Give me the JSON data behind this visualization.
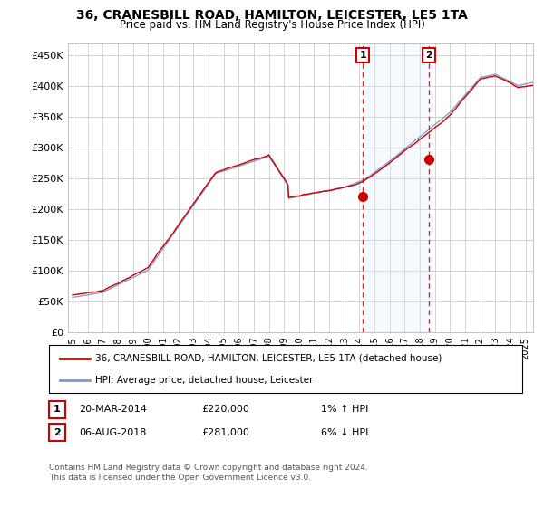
{
  "title": "36, CRANESBILL ROAD, HAMILTON, LEICESTER, LE5 1TA",
  "subtitle": "Price paid vs. HM Land Registry's House Price Index (HPI)",
  "ylabel_ticks": [
    "£0",
    "£50K",
    "£100K",
    "£150K",
    "£200K",
    "£250K",
    "£300K",
    "£350K",
    "£400K",
    "£450K"
  ],
  "ytick_vals": [
    0,
    50000,
    100000,
    150000,
    200000,
    250000,
    300000,
    350000,
    400000,
    450000
  ],
  "ylim": [
    0,
    470000
  ],
  "xlim_start": 1994.7,
  "xlim_end": 2025.5,
  "sale1_year": 2014.22,
  "sale1_price": 220000,
  "sale1_label": "1",
  "sale1_date": "20-MAR-2014",
  "sale1_text": "£220,000",
  "sale1_hpi": "1% ↑ HPI",
  "sale2_year": 2018.59,
  "sale2_price": 281000,
  "sale2_label": "2",
  "sale2_date": "06-AUG-2018",
  "sale2_text": "£281,000",
  "sale2_hpi": "6% ↓ HPI",
  "property_label": "36, CRANESBILL ROAD, HAMILTON, LEICESTER, LE5 1TA (detached house)",
  "hpi_label": "HPI: Average price, detached house, Leicester",
  "footnote": "Contains HM Land Registry data © Crown copyright and database right 2024.\nThis data is licensed under the Open Government Licence v3.0.",
  "property_line_color": "#cc0000",
  "hpi_line_color": "#7799cc",
  "marker_box_color": "#cc0000",
  "vline_color": "#cc0000",
  "shade_color": "#ddeeff",
  "background_color": "#ffffff",
  "grid_color": "#cccccc"
}
